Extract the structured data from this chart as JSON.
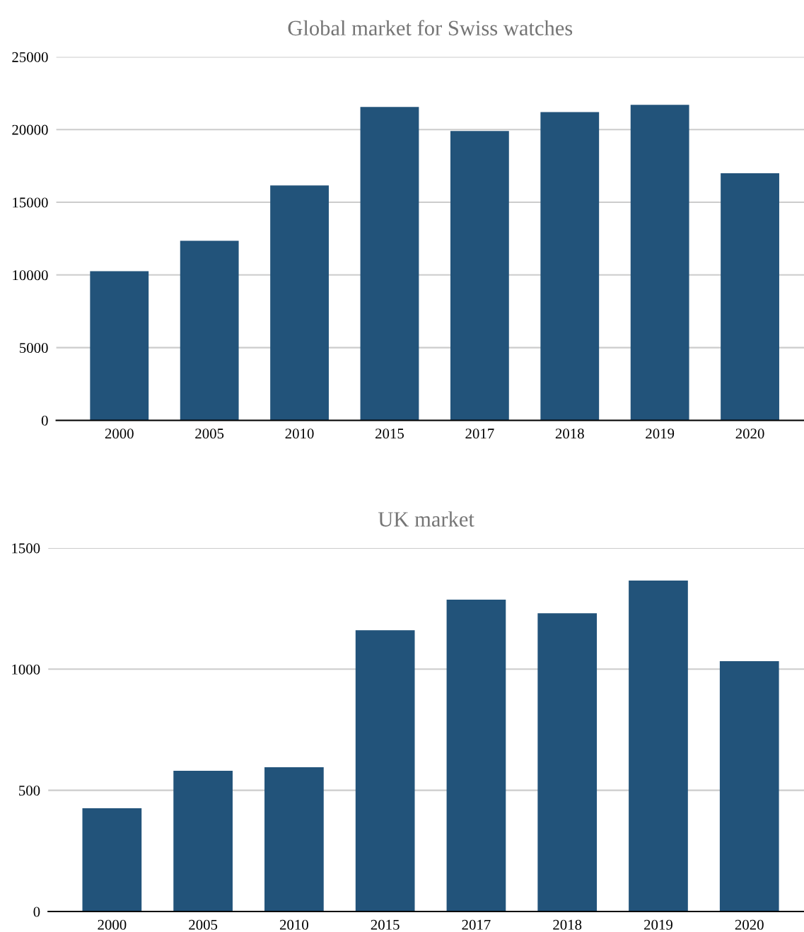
{
  "chart_data": [
    {
      "type": "bar",
      "title": "Global market for Swiss watches",
      "categories": [
        "2000",
        "2005",
        "2010",
        "2015",
        "2017",
        "2018",
        "2019",
        "2020"
      ],
      "values": [
        10260,
        12350,
        16150,
        21550,
        19900,
        21200,
        21700,
        17000
      ],
      "color": "#22537a",
      "ylim": [
        0,
        25000
      ],
      "yticks": [
        0,
        5000,
        10000,
        15000,
        20000,
        25000
      ],
      "grid": "y"
    },
    {
      "type": "bar",
      "title": "UK market",
      "categories": [
        "2000",
        "2005",
        "2010",
        "2015",
        "2017",
        "2018",
        "2019",
        "2020"
      ],
      "values": [
        426,
        581,
        595,
        1161,
        1287,
        1231,
        1366,
        1033
      ],
      "color": "#22537a",
      "ylim": [
        0,
        1500
      ],
      "yticks": [
        0,
        500,
        1000,
        1500
      ],
      "grid": "y"
    }
  ]
}
